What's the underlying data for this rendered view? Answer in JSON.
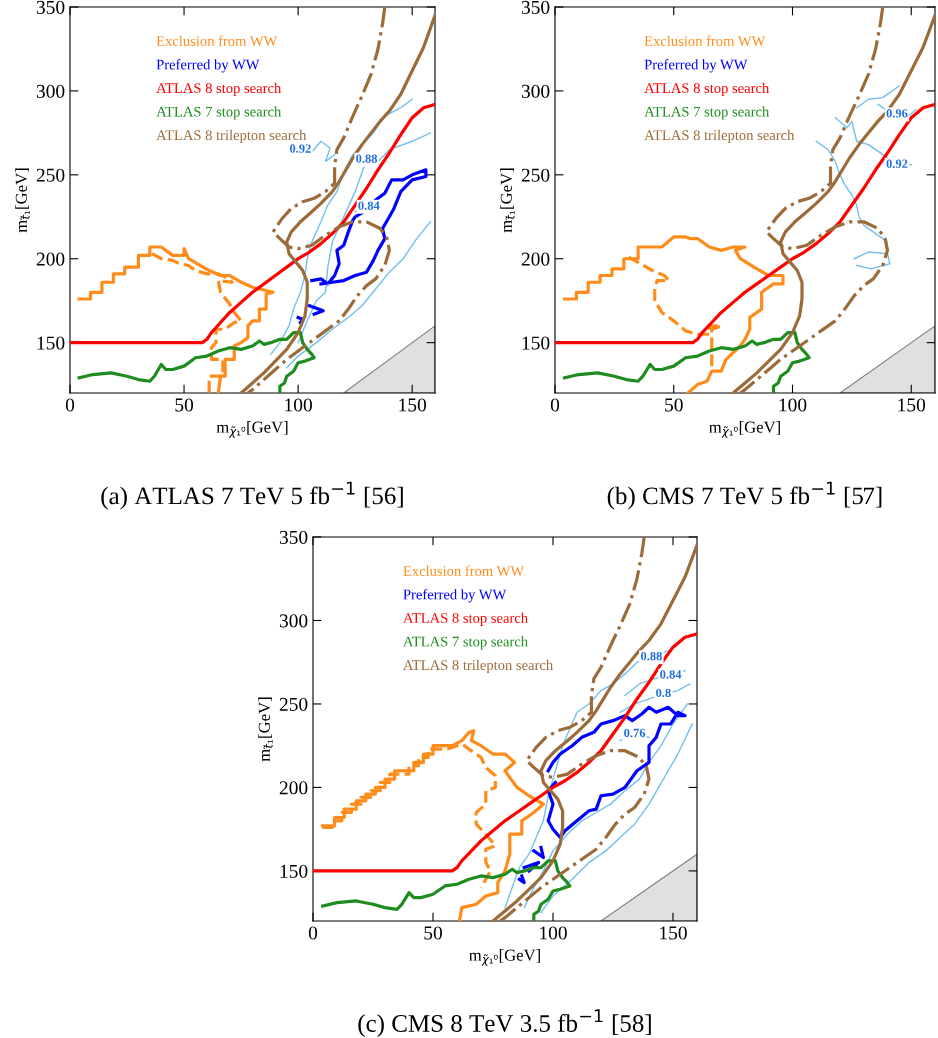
{
  "chart_data": [
    {
      "type": "line",
      "xlabel": "m$_{χ̃₁⁰}$[GeV]",
      "ylabel": "m$_{t̃₁}$[GeV]",
      "xlim": [
        0,
        160
      ],
      "ylim": [
        120,
        350
      ],
      "xticks": [
        0,
        50,
        100,
        150
      ],
      "yticks": [
        150,
        200,
        250,
        300,
        350
      ],
      "legend": "top left",
      "annotations": [
        "(a) ATLAS 7 TeV 5 fb$^{−1}$ [56]",
        {
          "text": "0.92",
          "x": 101,
          "y": 265
        },
        {
          "text": "0.88",
          "x": 130,
          "y": 259
        },
        {
          "text": "0.84",
          "x": 131,
          "y": 231
        }
      ],
      "series": [
        {
          "type": "area",
          "color": "#e0e0e0",
          "x": [
            120,
            160
          ],
          "values": [
            120,
            160
          ]
        },
        {
          "color": "#73bfef",
          "x": [
            88,
            92,
            96,
            98,
            101,
            103,
            104,
            106,
            110,
            113,
            117,
            120,
            124,
            128,
            133,
            138,
            145,
            150
          ],
          "values": [
            143,
            150,
            160,
            170,
            180,
            190,
            200,
            210,
            222,
            232,
            240,
            252,
            262,
            268,
            275,
            285,
            290,
            295
          ]
        },
        {
          "color": "#73bfef",
          "x": [
            100,
            104,
            108,
            112,
            113,
            115,
            120,
            125,
            130,
            135,
            140,
            150,
            158
          ],
          "values": [
            150,
            163,
            175,
            180,
            195,
            210,
            225,
            240,
            259,
            258,
            265,
            270,
            275
          ]
        },
        {
          "color": "#73bfef",
          "x": [
            101,
            105,
            110,
            114,
            112,
            116
          ],
          "values": [
            265,
            262,
            270,
            266,
            258,
            262
          ]
        },
        {
          "color": "#73bfef",
          "x": [
            125,
            131,
            136
          ],
          "values": [
            228,
            231,
            229
          ]
        },
        {
          "color": "#73bfef",
          "x": [
            95,
            100,
            108,
            115,
            122,
            128,
            134,
            140,
            146,
            152,
            158
          ],
          "values": [
            135,
            142,
            150,
            158,
            165,
            172,
            182,
            192,
            200,
            212,
            222
          ]
        },
        {
          "name": "Exclusion from WW",
          "color": "#ff8c1a",
          "line_style": "solid",
          "x": [
            4,
            9,
            9,
            14,
            14,
            19,
            19,
            24,
            24,
            30,
            30,
            35,
            35,
            40,
            42,
            45,
            50,
            50,
            52,
            57,
            61,
            66,
            70,
            75,
            80,
            89,
            86,
            86,
            83,
            83,
            80,
            78,
            78,
            75,
            72,
            72,
            68,
            68,
            66,
            65
          ],
          "values": [
            176,
            176,
            180,
            180,
            186,
            186,
            191,
            191,
            195,
            195,
            202,
            202,
            207,
            207,
            205,
            202,
            202,
            206,
            200,
            196,
            193,
            190,
            190,
            186,
            183,
            180,
            179,
            170,
            170,
            163,
            163,
            160,
            153,
            150,
            148,
            140,
            140,
            130,
            130,
            120
          ]
        },
        {
          "color": "#ff8c1a",
          "line_style": "dashed",
          "x": [
            36,
            40,
            45,
            48,
            52,
            55,
            60,
            65,
            70,
            71,
            65,
            66,
            70,
            72,
            75,
            72,
            70,
            68,
            64,
            64,
            62,
            62,
            67,
            67,
            61,
            61
          ],
          "values": [
            203,
            200,
            199,
            197,
            196,
            193,
            191,
            191,
            188,
            186,
            187,
            180,
            173,
            168,
            163,
            162,
            160,
            158,
            158,
            150,
            147,
            140,
            140,
            130,
            130,
            120
          ]
        },
        {
          "name": "Preferred by WW",
          "color": "#0000ff",
          "line_style": "solid",
          "x": [
            106,
            110,
            113,
            116,
            118,
            117,
            120,
            122,
            124,
            125,
            130,
            133,
            135,
            138,
            141,
            146,
            150,
            156,
            156,
            150,
            145,
            142,
            140,
            137,
            138,
            135,
            133,
            130,
            125,
            120,
            115,
            110
          ],
          "values": [
            187,
            188,
            185,
            190,
            197,
            205,
            208,
            216,
            223,
            225,
            229,
            234,
            236,
            239,
            247,
            247,
            250,
            253,
            249,
            247,
            240,
            230,
            225,
            218,
            212,
            205,
            199,
            192,
            190,
            187,
            186,
            185
          ]
        },
        {
          "color": "#0000ff",
          "line_style": "solid",
          "x": [
            105,
            111,
            107
          ],
          "values": [
            172,
            169,
            167
          ]
        },
        {
          "color": "#0000ff",
          "line_style": "solid",
          "x": [
            100,
            102,
            101
          ],
          "values": [
            165,
            164,
            162
          ]
        },
        {
          "name": "ATLAS 8 stop search",
          "color": "#ff0000",
          "line_style": "solid",
          "x": [
            0,
            58,
            60,
            62,
            66,
            70,
            75,
            80,
            85,
            90,
            95,
            100,
            105,
            110,
            115,
            120,
            125,
            130,
            135,
            140,
            145,
            150,
            155,
            160
          ],
          "values": [
            150,
            150,
            152,
            156,
            162,
            168,
            174,
            180,
            185,
            190,
            195,
            200,
            204,
            209,
            215,
            222,
            232,
            242,
            253,
            263,
            274,
            284,
            290,
            292
          ]
        },
        {
          "name": "ATLAS 7 stop search",
          "color": "#1e8c1e",
          "line_style": "solid",
          "x": [
            4,
            10,
            18,
            25,
            30,
            35,
            37,
            40,
            42,
            45,
            50,
            55,
            60,
            65,
            70,
            75,
            80,
            83,
            85,
            88,
            92,
            95,
            98,
            101,
            102,
            104,
            106,
            107,
            103,
            100,
            98,
            95,
            94,
            92,
            92
          ],
          "values": [
            129,
            131,
            132,
            130,
            128,
            127,
            130,
            137,
            134,
            134,
            136,
            141,
            142,
            145,
            147,
            146,
            148,
            151,
            149,
            150,
            152,
            152,
            156,
            156,
            150,
            146,
            143,
            141,
            139,
            138,
            133,
            130,
            126,
            124,
            120
          ]
        },
        {
          "name": "ATLAS 8 trilepton search",
          "color": "#9c6b3a",
          "line_style": "solid",
          "x": [
            75,
            80,
            85,
            90,
            95,
            100,
            103,
            104,
            104,
            102,
            99,
            96,
            95,
            97,
            101,
            106,
            110,
            115,
            118,
            121,
            124,
            128,
            132,
            136,
            140,
            145,
            150,
            155,
            160
          ],
          "values": [
            120,
            126,
            132,
            139,
            146,
            156,
            166,
            176,
            186,
            193,
            198,
            203,
            210,
            216,
            222,
            228,
            233,
            240,
            246,
            253,
            260,
            268,
            275,
            282,
            288,
            298,
            312,
            326,
            345
          ]
        },
        {
          "color": "#9c6b3a",
          "line_style": "dashdot",
          "x": [
            138,
            137,
            135,
            132,
            128,
            124,
            120,
            117,
            116,
            116,
            112,
            107,
            102,
            97,
            93,
            89,
            92,
            96,
            100,
            106,
            112,
            118,
            124,
            130,
            136,
            139,
            140,
            138,
            134,
            130,
            126,
            122,
            118,
            112,
            106,
            100,
            95,
            90,
            85,
            80,
            78
          ],
          "values": [
            350,
            340,
            325,
            310,
            297,
            285,
            272,
            265,
            255,
            245,
            240,
            236,
            234,
            230,
            224,
            216,
            212,
            207,
            206,
            208,
            214,
            219,
            222,
            222,
            218,
            212,
            205,
            196,
            188,
            184,
            178,
            170,
            163,
            157,
            151,
            145,
            140,
            134,
            128,
            122,
            120
          ]
        }
      ]
    },
    {
      "type": "line",
      "xlabel": "m$_{χ̃₁⁰}$[GeV]",
      "ylabel": "m$_{t̃₁}$[GeV]",
      "xlim": [
        0,
        160
      ],
      "ylim": [
        120,
        350
      ],
      "xticks": [
        0,
        50,
        100,
        150
      ],
      "yticks": [
        150,
        200,
        250,
        300,
        350
      ],
      "legend": "top left",
      "annotations": [
        "(b) CMS 7 TeV 5 fb$^{−1}$ [57]",
        {
          "text": "0.96",
          "x": 144,
          "y": 286
        },
        {
          "text": "0.92",
          "x": 144,
          "y": 256
        }
      ],
      "series": [
        {
          "type": "area",
          "color": "#e0e0e0",
          "x": [
            120,
            160
          ],
          "values": [
            120,
            160
          ]
        },
        {
          "color": "#73bfef",
          "x": [
            110,
            115,
            118,
            120,
            122,
            125,
            127,
            128,
            130,
            135,
            140
          ],
          "values": [
            270,
            265,
            258,
            250,
            244,
            238,
            232,
            225,
            220,
            215,
            210
          ]
        },
        {
          "color": "#73bfef",
          "x": [
            127,
            132,
            138,
            142,
            145
          ],
          "values": [
            290,
            295,
            296,
            300,
            303
          ]
        },
        {
          "color": "#73bfef",
          "x": [
            118,
            123,
            125,
            127,
            132,
            138,
            144,
            150
          ],
          "values": [
            284,
            278,
            282,
            270,
            268,
            262,
            256,
            256
          ]
        },
        {
          "color": "#73bfef",
          "x": [
            136,
            140,
            144,
            148,
            152
          ],
          "values": [
            292,
            288,
            286,
            284,
            289
          ]
        },
        {
          "color": "#73bfef",
          "x": [
            126,
            132,
            140,
            141,
            133,
            127
          ],
          "values": [
            200,
            204,
            203,
            197,
            194,
            196
          ]
        },
        {
          "name": "Exclusion from WW",
          "color": "#ff8c1a",
          "line_style": "solid",
          "x": [
            4,
            9,
            9,
            14,
            14,
            19,
            19,
            24,
            24,
            29,
            29,
            35,
            35,
            45,
            50,
            55,
            57,
            60,
            65,
            70,
            75,
            80,
            76,
            78,
            85,
            90,
            96,
            96,
            92,
            87,
            87,
            82,
            82,
            80,
            78,
            75,
            72,
            70,
            66,
            64,
            60,
            56
          ],
          "values": [
            176,
            176,
            180,
            180,
            186,
            186,
            190,
            190,
            194,
            194,
            200,
            200,
            207,
            207,
            213,
            213,
            212,
            212,
            207,
            205,
            207,
            207,
            205,
            200,
            194,
            190,
            190,
            185,
            185,
            180,
            170,
            165,
            158,
            152,
            148,
            144,
            140,
            133,
            133,
            127,
            125,
            120
          ]
        },
        {
          "name": "Preferred by WW",
          "color": "#0000ff",
          "line_style": "solid"
        },
        {
          "color": "#ff8c1a",
          "line_style": "dashed",
          "x": [
            31,
            36,
            41,
            46,
            48,
            43,
            42,
            42,
            45,
            50,
            55,
            60,
            65,
            65,
            70,
            66,
            66,
            66,
            66
          ],
          "values": [
            201,
            197,
            193,
            190,
            187,
            187,
            182,
            175,
            168,
            163,
            157,
            155,
            155,
            160,
            160,
            158,
            150,
            140,
            135
          ]
        },
        {
          "name": "ATLAS 8 stop search",
          "color": "#ff0000",
          "line_style": "solid",
          "x": [
            0,
            58,
            60,
            62,
            66,
            70,
            75,
            80,
            85,
            90,
            95,
            100,
            105,
            110,
            115,
            120,
            125,
            130,
            135,
            140,
            145,
            150,
            155,
            160
          ],
          "values": [
            150,
            150,
            152,
            156,
            162,
            168,
            174,
            180,
            185,
            190,
            195,
            200,
            204,
            209,
            215,
            222,
            232,
            242,
            253,
            263,
            274,
            284,
            290,
            292
          ]
        },
        {
          "name": "ATLAS 7 stop search",
          "color": "#1e8c1e",
          "line_style": "solid",
          "x": [
            4,
            10,
            18,
            25,
            30,
            35,
            37,
            40,
            42,
            45,
            50,
            55,
            60,
            65,
            70,
            75,
            80,
            83,
            85,
            88,
            92,
            95,
            98,
            101,
            102,
            104,
            106,
            107,
            103,
            100,
            98,
            95,
            94,
            92,
            92
          ],
          "values": [
            129,
            131,
            132,
            130,
            128,
            127,
            130,
            137,
            134,
            134,
            136,
            141,
            142,
            145,
            147,
            146,
            148,
            151,
            149,
            150,
            152,
            152,
            156,
            156,
            150,
            146,
            143,
            141,
            139,
            138,
            133,
            130,
            126,
            124,
            120
          ]
        },
        {
          "name": "ATLAS 8 trilepton search",
          "color": "#9c6b3a",
          "line_style": "solid",
          "x": [
            75,
            80,
            85,
            90,
            95,
            100,
            103,
            104,
            104,
            102,
            99,
            96,
            95,
            97,
            101,
            106,
            110,
            115,
            118,
            121,
            124,
            128,
            132,
            136,
            140,
            145,
            150,
            155,
            160
          ],
          "values": [
            120,
            126,
            132,
            139,
            146,
            156,
            166,
            176,
            186,
            193,
            198,
            203,
            210,
            216,
            222,
            228,
            233,
            240,
            246,
            253,
            260,
            268,
            275,
            282,
            288,
            298,
            312,
            326,
            345
          ]
        },
        {
          "color": "#9c6b3a",
          "line_style": "dashdot",
          "x": [
            138,
            137,
            135,
            132,
            128,
            124,
            120,
            117,
            116,
            116,
            112,
            107,
            102,
            97,
            93,
            89,
            92,
            96,
            100,
            106,
            112,
            118,
            124,
            130,
            136,
            139,
            140,
            138,
            134,
            130,
            126,
            122,
            118,
            112,
            106,
            100,
            95,
            90,
            85,
            80,
            78
          ],
          "values": [
            350,
            340,
            325,
            310,
            297,
            285,
            272,
            265,
            255,
            245,
            240,
            236,
            234,
            230,
            224,
            216,
            212,
            207,
            206,
            208,
            214,
            219,
            222,
            222,
            218,
            212,
            205,
            196,
            188,
            184,
            178,
            170,
            163,
            157,
            151,
            145,
            140,
            134,
            128,
            122,
            120
          ]
        }
      ]
    },
    {
      "type": "line",
      "xlabel": "m$_{χ̃₁⁰}$[GeV]",
      "ylabel": "m$_{t̃₁}$[GeV]",
      "xlim": [
        0,
        160
      ],
      "ylim": [
        120,
        350
      ],
      "xticks": [
        0,
        50,
        100,
        150
      ],
      "yticks": [
        150,
        200,
        250,
        300,
        350
      ],
      "legend": "top left",
      "annotations": [
        "(c) CMS 8 TeV 3.5 fb$^{−1}$ [58]",
        {
          "text": "0.88",
          "x": 141,
          "y": 278
        },
        {
          "text": "0.84",
          "x": 149,
          "y": 267
        },
        {
          "text": "0.8",
          "x": 146,
          "y": 256
        },
        {
          "text": "0.76",
          "x": 134,
          "y": 232
        }
      ],
      "series": [
        {
          "type": "area",
          "color": "#e0e0e0",
          "x": [
            120,
            160
          ],
          "values": [
            120,
            160
          ]
        },
        {
          "color": "#73bfef",
          "x": [
            80,
            83,
            86,
            90,
            93,
            96,
            98,
            100,
            102,
            104,
            107,
            110,
            115,
            120,
            125,
            130,
            135,
            141,
            148
          ],
          "values": [
            128,
            140,
            152,
            160,
            170,
            180,
            195,
            205,
            215,
            225,
            235,
            245,
            250,
            258,
            262,
            268,
            275,
            278,
            282
          ]
        },
        {
          "color": "#73bfef",
          "x": [
            130,
            136,
            142,
            149,
            155
          ],
          "values": [
            255,
            262,
            265,
            267,
            270
          ]
        },
        {
          "color": "#73bfef",
          "x": [
            128,
            134,
            140,
            146,
            152,
            157
          ],
          "values": [
            245,
            250,
            253,
            256,
            258,
            262
          ]
        },
        {
          "color": "#73bfef",
          "x": [
            128,
            134,
            140
          ],
          "values": [
            228,
            232,
            230
          ]
        },
        {
          "color": "#73bfef",
          "x": [
            88,
            92,
            96,
            100,
            106,
            112,
            118,
            124,
            130,
            136,
            140,
            145,
            150,
            156
          ],
          "values": [
            128,
            140,
            150,
            162,
            172,
            180,
            185,
            190,
            198,
            205,
            215,
            225,
            238,
            250
          ]
        },
        {
          "color": "#73bfef",
          "x": [
            95,
            100,
            108,
            115,
            122,
            128,
            134,
            140,
            146,
            152,
            158
          ],
          "values": [
            125,
            135,
            145,
            155,
            162,
            170,
            178,
            190,
            205,
            220,
            238
          ]
        },
        {
          "name": "Exclusion from WW",
          "color": "#ff8c1a",
          "line_style": "solid",
          "x": [
            4,
            9,
            9,
            13,
            13,
            18,
            18,
            22,
            22,
            26,
            26,
            30,
            30,
            34,
            34,
            42,
            42,
            46,
            46,
            50,
            50,
            58,
            62,
            65,
            67,
            66,
            70,
            75,
            80,
            84,
            80,
            85,
            90,
            96,
            92,
            87,
            87,
            82,
            82,
            80,
            77,
            77,
            72,
            68,
            62,
            61
          ],
          "values": [
            177,
            177,
            182,
            182,
            187,
            187,
            192,
            192,
            196,
            196,
            200,
            200,
            205,
            205,
            210,
            210,
            215,
            215,
            220,
            220,
            225,
            225,
            228,
            233,
            234,
            228,
            225,
            220,
            220,
            215,
            210,
            200,
            195,
            190,
            185,
            180,
            172,
            172,
            160,
            150,
            143,
            137,
            135,
            130,
            128,
            120
          ]
        },
        {
          "color": "#ff8c1a",
          "line_style": "dashed",
          "x": [
            4,
            8,
            8,
            12,
            12,
            16,
            16,
            20,
            20,
            24,
            24,
            28,
            28,
            32,
            32,
            40,
            40,
            44,
            44,
            48,
            48,
            56,
            62,
            66,
            70,
            72,
            76,
            76,
            72,
            72,
            68,
            68,
            72,
            76,
            72,
            72,
            74,
            72,
            70
          ],
          "values": [
            176,
            176,
            180,
            180,
            185,
            185,
            190,
            190,
            194,
            194,
            198,
            198,
            203,
            203,
            208,
            208,
            213,
            213,
            218,
            218,
            223,
            223,
            226,
            222,
            218,
            212,
            207,
            200,
            198,
            190,
            185,
            178,
            172,
            165,
            163,
            155,
            150,
            145,
            140
          ]
        },
        {
          "name": "Preferred by WW",
          "color": "#0000ff",
          "line_style": "solid",
          "x": [
            98,
            100,
            103,
            108,
            112,
            117,
            120,
            125,
            130,
            133,
            137,
            140,
            143,
            148,
            152,
            155,
            152,
            149,
            145,
            143,
            140,
            140,
            135,
            130,
            125,
            120,
            118,
            115,
            110,
            105,
            103,
            100,
            98,
            100,
            98,
            101
          ],
          "values": [
            210,
            215,
            220,
            225,
            230,
            233,
            238,
            240,
            243,
            240,
            244,
            248,
            245,
            248,
            243,
            243,
            245,
            238,
            238,
            230,
            225,
            215,
            210,
            200,
            196,
            195,
            187,
            186,
            180,
            174,
            170,
            175,
            180,
            190,
            198,
            203
          ]
        },
        {
          "color": "#0000ff",
          "line_style": "solid",
          "x": [
            92,
            96,
            95
          ],
          "values": [
            162,
            158,
            164
          ]
        },
        {
          "color": "#0000ff",
          "line_style": "solid",
          "x": [
            86,
            88,
            87
          ],
          "values": [
            145,
            143,
            147
          ]
        },
        {
          "color": "#0000ff",
          "line_style": "solid",
          "x": [
            88,
            94,
            90
          ],
          "values": [
            152,
            155,
            150
          ]
        },
        {
          "name": "ATLAS 8 stop search",
          "color": "#ff0000",
          "line_style": "solid",
          "x": [
            0,
            58,
            60,
            62,
            66,
            70,
            75,
            80,
            85,
            90,
            95,
            100,
            105,
            110,
            115,
            120,
            125,
            130,
            135,
            140,
            145,
            150,
            155,
            160
          ],
          "values": [
            150,
            150,
            152,
            156,
            162,
            168,
            174,
            180,
            185,
            190,
            195,
            200,
            204,
            209,
            215,
            222,
            232,
            242,
            253,
            263,
            274,
            284,
            290,
            292
          ]
        },
        {
          "name": "ATLAS 7 stop search",
          "color": "#1e8c1e",
          "line_style": "solid",
          "x": [
            4,
            10,
            18,
            25,
            30,
            35,
            37,
            40,
            42,
            45,
            50,
            55,
            60,
            65,
            70,
            75,
            80,
            83,
            85,
            88,
            92,
            95,
            98,
            101,
            102,
            104,
            106,
            107,
            103,
            100,
            98,
            95,
            94,
            92,
            92
          ],
          "values": [
            129,
            131,
            132,
            130,
            128,
            127,
            130,
            137,
            134,
            134,
            136,
            141,
            142,
            145,
            147,
            146,
            148,
            151,
            149,
            150,
            152,
            152,
            156,
            156,
            150,
            146,
            143,
            141,
            139,
            138,
            133,
            130,
            126,
            124,
            120
          ]
        },
        {
          "name": "ATLAS 8 trilepton search",
          "color": "#9c6b3a",
          "line_style": "solid",
          "x": [
            75,
            80,
            85,
            90,
            95,
            100,
            103,
            104,
            104,
            102,
            99,
            96,
            95,
            97,
            101,
            106,
            110,
            115,
            118,
            121,
            124,
            128,
            132,
            136,
            140,
            145,
            150,
            155,
            160
          ],
          "values": [
            120,
            126,
            132,
            139,
            146,
            156,
            166,
            176,
            186,
            193,
            198,
            203,
            210,
            216,
            222,
            228,
            233,
            240,
            246,
            253,
            260,
            268,
            275,
            282,
            288,
            298,
            312,
            326,
            345
          ]
        },
        {
          "color": "#9c6b3a",
          "line_style": "dashdot",
          "x": [
            138,
            137,
            135,
            132,
            128,
            124,
            120,
            117,
            116,
            116,
            112,
            107,
            102,
            97,
            93,
            89,
            92,
            96,
            100,
            106,
            112,
            118,
            124,
            130,
            136,
            139,
            140,
            138,
            134,
            130,
            126,
            122,
            118,
            112,
            106,
            100,
            95,
            90,
            85,
            80,
            78
          ],
          "values": [
            350,
            340,
            325,
            310,
            297,
            285,
            272,
            265,
            255,
            245,
            240,
            236,
            234,
            230,
            224,
            216,
            212,
            207,
            206,
            208,
            214,
            219,
            222,
            222,
            218,
            212,
            205,
            196,
            188,
            184,
            178,
            170,
            163,
            157,
            151,
            145,
            140,
            134,
            128,
            122,
            120
          ]
        }
      ]
    }
  ]
}
